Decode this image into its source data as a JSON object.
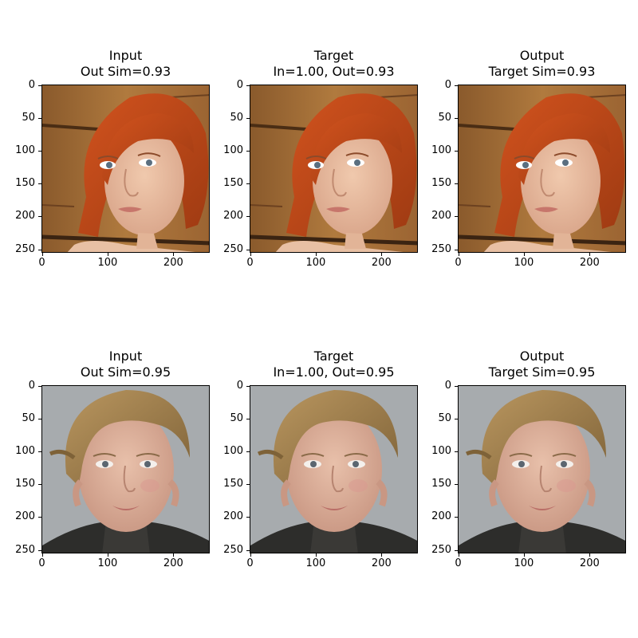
{
  "panels": [
    {
      "title": "Input",
      "subtitle": "Out Sim=0.93",
      "subject": "red-hair-woman"
    },
    {
      "title": "Target",
      "subtitle": "In=1.00, Out=0.93",
      "subject": "red-hair-woman"
    },
    {
      "title": "Output",
      "subtitle": "Target Sim=0.93",
      "subject": "red-hair-woman"
    },
    {
      "title": "Input",
      "subtitle": "Out Sim=0.95",
      "subject": "blond-boy"
    },
    {
      "title": "Target",
      "subtitle": "In=1.00, Out=0.95",
      "subject": "blond-boy"
    },
    {
      "title": "Output",
      "subtitle": "Target Sim=0.95",
      "subject": "blond-boy"
    }
  ],
  "yticks": [
    "0",
    "50",
    "100",
    "150",
    "200",
    "250"
  ],
  "xticks": [
    "0",
    "100",
    "200"
  ]
}
